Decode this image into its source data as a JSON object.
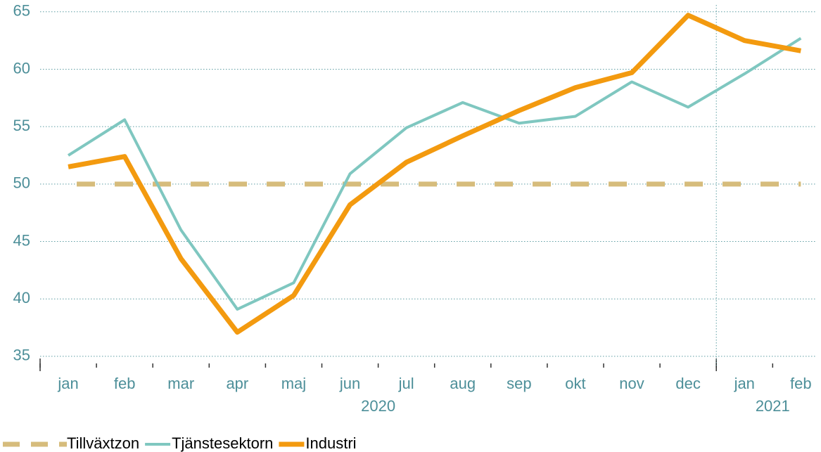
{
  "chart_data": {
    "type": "line",
    "categories": [
      "jan",
      "feb",
      "mar",
      "apr",
      "maj",
      "jun",
      "jul",
      "aug",
      "sep",
      "okt",
      "nov",
      "dec",
      "jan",
      "feb"
    ],
    "groups": [
      {
        "label": "2020",
        "start": 0,
        "end": 11
      },
      {
        "label": "2021",
        "start": 12,
        "end": 13
      }
    ],
    "series": [
      {
        "name": "Tillväxtzon",
        "color": "#d6bc7c",
        "dashed": true,
        "values": [
          50,
          50,
          50,
          50,
          50,
          50,
          50,
          50,
          50,
          50,
          50,
          50,
          50,
          50
        ]
      },
      {
        "name": "Tjänstesektorn",
        "color": "#7fc7c0",
        "values": [
          52.5,
          55.6,
          46,
          39.1,
          41.4,
          50.9,
          54.9,
          57.1,
          55.3,
          55.9,
          58.9,
          56.7,
          59.6,
          62.7
        ]
      },
      {
        "name": "Industri",
        "color": "#f39a0f",
        "values": [
          51.5,
          52.4,
          43.5,
          37.1,
          40.3,
          48.2,
          51.9,
          54.2,
          56.4,
          58.4,
          59.7,
          64.7,
          62.5,
          61.6
        ]
      }
    ],
    "ylim": [
      34.2,
      65.6
    ],
    "yticks": [
      35,
      40,
      45,
      50,
      55,
      60,
      65
    ],
    "grid": true,
    "legend": "bottom-left"
  }
}
